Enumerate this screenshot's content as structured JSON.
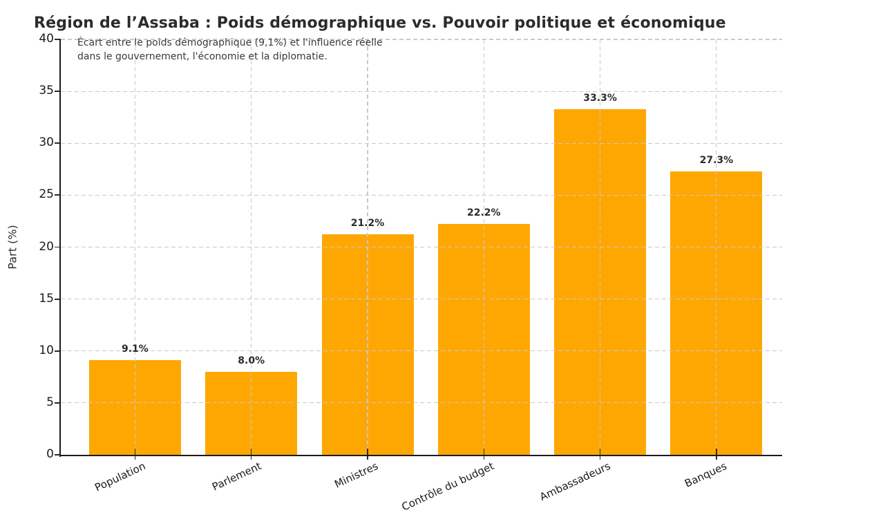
{
  "page": {
    "background": "#ffffff"
  },
  "chart_data": {
    "type": "bar",
    "title": "Région de l’Assaba : Poids démographique vs. Pouvoir politique et économique",
    "subtitle_line1": "Écart entre le poids démographique (9,1%) et l'influence réelle",
    "subtitle_line2": "dans le gouvernement, l'économie et la diplomatie.",
    "ylabel": "Part (%)",
    "xlabel": "",
    "categories": [
      "Population",
      "Parlement",
      "Ministres",
      "Contrôle du budget",
      "Ambassadeurs",
      "Banques"
    ],
    "values": [
      9.1,
      8.0,
      21.2,
      22.2,
      33.3,
      27.3
    ],
    "value_labels": [
      "9.1%",
      "8.0%",
      "21.2%",
      "22.2%",
      "33.3%",
      "27.3%"
    ],
    "ylim": [
      0,
      40
    ],
    "yticks": [
      0,
      5,
      10,
      15,
      20,
      25,
      30,
      35,
      40
    ],
    "grid": true,
    "grid_style": "dashed",
    "legend": "none",
    "bar_color": "#FEA702",
    "grid_color": "#c9c9c9",
    "axis_color": "#1a1a1a",
    "text_color": "#2b2b2b"
  }
}
